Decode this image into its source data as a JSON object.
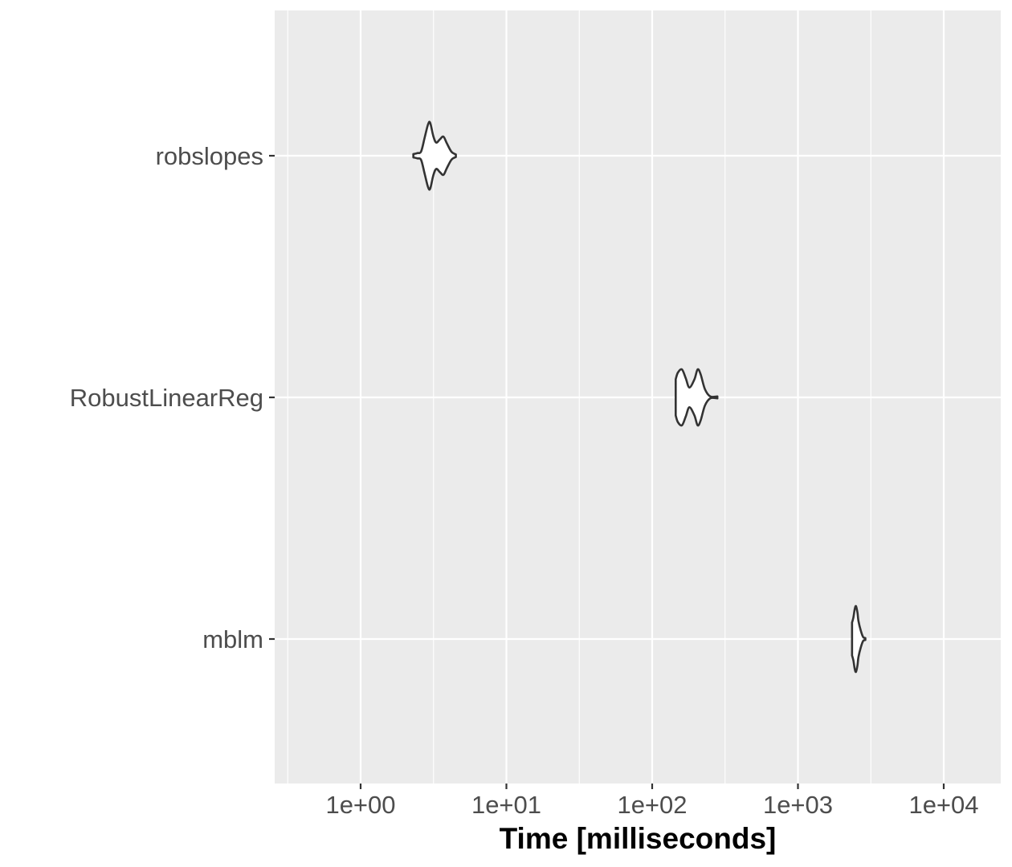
{
  "chart_data": {
    "type": "violin",
    "title": "",
    "xlabel": "Time [milliseconds]",
    "ylabel": "",
    "x_scale": "log10",
    "xlim": [
      0.3,
      25000
    ],
    "x_ticks": [
      1,
      10,
      100,
      1000,
      10000
    ],
    "x_tick_labels": [
      "1e+00",
      "1e+01",
      "1e+02",
      "1e+03",
      "1e+04"
    ],
    "categories": [
      "robslopes",
      "RobustLinearReg",
      "mblm"
    ],
    "grid": true,
    "legend": "none",
    "series": [
      {
        "category": "robslopes",
        "min": 2.3,
        "max": 4.5,
        "density": [
          [
            2.3,
            0.05
          ],
          [
            2.45,
            0.08
          ],
          [
            2.6,
            0.13
          ],
          [
            2.75,
            0.55
          ],
          [
            2.9,
            0.95
          ],
          [
            3.0,
            1.0
          ],
          [
            3.15,
            0.6
          ],
          [
            3.3,
            0.4
          ],
          [
            3.5,
            0.5
          ],
          [
            3.7,
            0.58
          ],
          [
            3.9,
            0.38
          ],
          [
            4.2,
            0.12
          ],
          [
            4.5,
            0.04
          ]
        ]
      },
      {
        "category": "RobustLinearReg",
        "min": 145,
        "max": 280,
        "density": [
          [
            145,
            0.55
          ],
          [
            150,
            0.75
          ],
          [
            160,
            0.85
          ],
          [
            170,
            0.58
          ],
          [
            180,
            0.3
          ],
          [
            195,
            0.55
          ],
          [
            205,
            0.85
          ],
          [
            215,
            0.7
          ],
          [
            230,
            0.25
          ],
          [
            250,
            0.03
          ],
          [
            280,
            0.03
          ]
        ]
      },
      {
        "category": "mblm",
        "min": 2350,
        "max": 2900,
        "density": [
          [
            2350,
            0.5
          ],
          [
            2400,
            0.65
          ],
          [
            2450,
            0.9
          ],
          [
            2500,
            1.0
          ],
          [
            2560,
            0.8
          ],
          [
            2600,
            0.55
          ],
          [
            2700,
            0.25
          ],
          [
            2800,
            0.06
          ],
          [
            2900,
            0.03
          ]
        ]
      }
    ],
    "colors": {
      "panel": "#EBEBEB",
      "grid": "#FFFFFF",
      "outline": "#333333",
      "fill": "#FFFFFF",
      "tick_label": "#4D4D4D"
    }
  }
}
